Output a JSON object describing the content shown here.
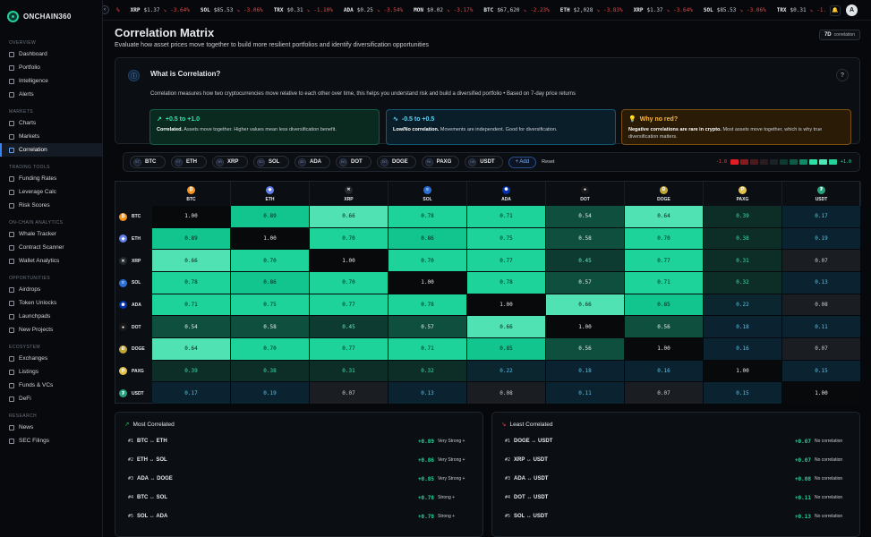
{
  "app": {
    "name": "ONCHAIN360"
  },
  "sidebar": {
    "sections": [
      {
        "title": "OVERVIEW",
        "items": [
          {
            "label": "Dashboard"
          },
          {
            "label": "Portfolio"
          },
          {
            "label": "Intelligence"
          },
          {
            "label": "Alerts"
          }
        ]
      },
      {
        "title": "MARKETS",
        "items": [
          {
            "label": "Charts"
          },
          {
            "label": "Markets"
          },
          {
            "label": "Correlation",
            "active": true
          }
        ]
      },
      {
        "title": "TRADING TOOLS",
        "items": [
          {
            "label": "Funding Rates"
          },
          {
            "label": "Leverage Calc"
          },
          {
            "label": "Risk Scores"
          }
        ]
      },
      {
        "title": "ON-CHAIN ANALYTICS",
        "items": [
          {
            "label": "Whale Tracker"
          },
          {
            "label": "Contract Scanner"
          },
          {
            "label": "Wallet Analytics"
          }
        ]
      },
      {
        "title": "OPPORTUNITIES",
        "items": [
          {
            "label": "Airdrops"
          },
          {
            "label": "Token Unlocks"
          },
          {
            "label": "Launchpads"
          },
          {
            "label": "New Projects"
          }
        ]
      },
      {
        "title": "ECOSYSTEM",
        "items": [
          {
            "label": "Exchanges"
          },
          {
            "label": "Listings"
          },
          {
            "label": "Funds & VCs"
          },
          {
            "label": "DeFi"
          }
        ]
      },
      {
        "title": "RESEARCH",
        "items": [
          {
            "label": "News"
          },
          {
            "label": "SEC Filings"
          }
        ]
      }
    ]
  },
  "ticker": [
    {
      "sym": "",
      "price": "",
      "chg": "%"
    },
    {
      "sym": "XRP",
      "price": "$1.37",
      "chg": "-3.64%"
    },
    {
      "sym": "SOL",
      "price": "$85.53",
      "chg": "-3.06%"
    },
    {
      "sym": "TRX",
      "price": "$0.31",
      "chg": "-1.10%"
    },
    {
      "sym": "ADA",
      "price": "$0.25",
      "chg": "-3.54%"
    },
    {
      "sym": "MON",
      "price": "$0.02",
      "chg": "-3.17%"
    },
    {
      "sym": "BTC",
      "price": "$67,620",
      "chg": "-2.23%"
    },
    {
      "sym": "ETH",
      "price": "$2,028",
      "chg": "-3.83%"
    },
    {
      "sym": "XRP",
      "price": "$1.37",
      "chg": "-3.64%"
    },
    {
      "sym": "SOL",
      "price": "$85.53",
      "chg": "-3.06%"
    },
    {
      "sym": "TRX",
      "price": "$0.31",
      "chg": "-1.10%"
    },
    {
      "sym": "ADA",
      "price": "$0.25",
      "chg": "-3.54%"
    }
  ],
  "user": {
    "avatar": "A"
  },
  "page": {
    "title": "Correlation Matrix",
    "subtitle": "Evaluate how asset prices move together to build more resilient portfolios and identify diversification opportunities",
    "period_value": "7D",
    "period_label": "correlation"
  },
  "info": {
    "title": "What is Correlation?",
    "help": "?",
    "description": "Correlation measures how two cryptocurrencies move relative to each other over time, this helps you understand risk and build a diversified portfolio • Based on 7-day price returns",
    "boxes": [
      {
        "range": "+0.5 to +1.0",
        "bold": "Correlated.",
        "text": " Assets move together. Higher values mean less diversification benefit."
      },
      {
        "range": "-0.5 to +0.5",
        "bold": "Low/No correlation.",
        "text": " Movements are independent. Good for diversification."
      },
      {
        "range": "Why no red?",
        "bold": "Negative correlations are rare in crypto.",
        "text": " Most assets move together, which is why true diversification matters."
      }
    ]
  },
  "assets": {
    "chips": [
      {
        "code": "BT",
        "name": "BTC"
      },
      {
        "code": "ET",
        "name": "ETH"
      },
      {
        "code": "XR",
        "name": "XRP"
      },
      {
        "code": "SO",
        "name": "SOL"
      },
      {
        "code": "AD",
        "name": "ADA"
      },
      {
        "code": "DO",
        "name": "DOT"
      },
      {
        "code": "DO",
        "name": "DOGE"
      },
      {
        "code": "PA",
        "name": "PAXG"
      },
      {
        "code": "US",
        "name": "USDT"
      }
    ],
    "add_label": "+ Add",
    "reset_label": "Reset",
    "legend_min": "-1.0",
    "legend_max": "+1.0",
    "legend_colors": [
      "#e11d27",
      "#8b1a1f",
      "#4a1b1e",
      "#2a1d20",
      "#1a2226",
      "#0f3a33",
      "#0f5a46",
      "#0f8a66",
      "#2fe0a6",
      "#4ee8b4",
      "#24d39a"
    ]
  },
  "matrix": {
    "assets": [
      "BTC",
      "ETH",
      "XRP",
      "SOL",
      "ADA",
      "DOT",
      "DOGE",
      "PAXG",
      "USDT"
    ],
    "icons": [
      {
        "bg": "#f7931a",
        "g": "₿"
      },
      {
        "bg": "#627eea",
        "g": "◆"
      },
      {
        "bg": "#23292f",
        "g": "✕"
      },
      {
        "bg": "#2b6fd6",
        "g": "≡"
      },
      {
        "bg": "#0033ad",
        "g": "✺"
      },
      {
        "bg": "#1a1a1a",
        "g": "●"
      },
      {
        "bg": "#c2a633",
        "g": "Ð"
      },
      {
        "bg": "#e4c34a",
        "g": "P"
      },
      {
        "bg": "#26a17b",
        "g": "₮"
      }
    ],
    "values": [
      [
        "1.00",
        "0.89",
        "0.66",
        "0.78",
        "0.71",
        "0.54",
        "0.64",
        "0.39",
        "0.17"
      ],
      [
        "0.89",
        "1.00",
        "0.70",
        "0.86",
        "0.75",
        "0.58",
        "0.70",
        "0.38",
        "0.19"
      ],
      [
        "0.66",
        "0.70",
        "1.00",
        "0.70",
        "0.77",
        "0.45",
        "0.77",
        "0.31",
        "0.07"
      ],
      [
        "0.78",
        "0.86",
        "0.70",
        "1.00",
        "0.78",
        "0.57",
        "0.71",
        "0.32",
        "0.13"
      ],
      [
        "0.71",
        "0.75",
        "0.77",
        "0.78",
        "1.00",
        "0.66",
        "0.85",
        "0.22",
        "0.08"
      ],
      [
        "0.54",
        "0.58",
        "0.45",
        "0.57",
        "0.66",
        "1.00",
        "0.56",
        "0.18",
        "0.11"
      ],
      [
        "0.64",
        "0.70",
        "0.77",
        "0.71",
        "0.85",
        "0.56",
        "1.00",
        "0.16",
        "0.07"
      ],
      [
        "0.39",
        "0.38",
        "0.31",
        "0.32",
        "0.22",
        "0.18",
        "0.16",
        "1.00",
        "0.15"
      ],
      [
        "0.17",
        "0.19",
        "0.07",
        "0.13",
        "0.08",
        "0.11",
        "0.07",
        "0.15",
        "1.00"
      ]
    ]
  },
  "most": {
    "title": "Most Correlated",
    "rows": [
      {
        "rank": "#1",
        "pair": "BTC ↔ ETH",
        "value": "+0.89",
        "label": "Very Strong +"
      },
      {
        "rank": "#2",
        "pair": "ETH ↔ SOL",
        "value": "+0.86",
        "label": "Very Strong +"
      },
      {
        "rank": "#3",
        "pair": "ADA ↔ DOGE",
        "value": "+0.85",
        "label": "Very Strong +"
      },
      {
        "rank": "#4",
        "pair": "BTC ↔ SOL",
        "value": "+0.78",
        "label": "Strong +"
      },
      {
        "rank": "#5",
        "pair": "SOL ↔ ADA",
        "value": "+0.78",
        "label": "Strong +"
      }
    ]
  },
  "least": {
    "title": "Least Correlated",
    "rows": [
      {
        "rank": "#1",
        "pair": "DOGE ↔ USDT",
        "value": "+0.07",
        "label": "No correlation"
      },
      {
        "rank": "#2",
        "pair": "XRP ↔ USDT",
        "value": "+0.07",
        "label": "No correlation"
      },
      {
        "rank": "#3",
        "pair": "ADA ↔ USDT",
        "value": "+0.08",
        "label": "No correlation"
      },
      {
        "rank": "#4",
        "pair": "DOT ↔ USDT",
        "value": "+0.11",
        "label": "No correlation"
      },
      {
        "rank": "#5",
        "pair": "SOL ↔ USDT",
        "value": "+0.13",
        "label": "No correlation"
      }
    ]
  }
}
